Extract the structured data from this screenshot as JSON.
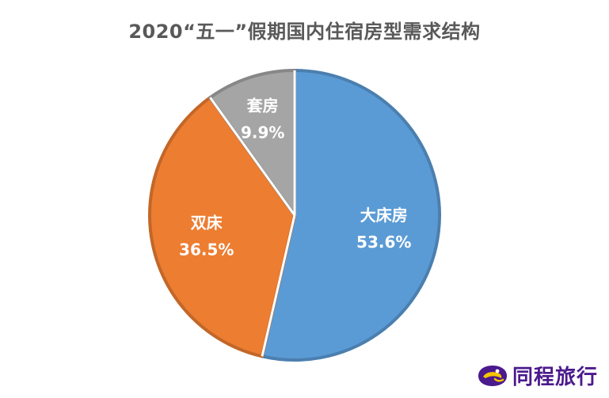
{
  "chart_data": {
    "type": "pie",
    "title": "2020“五一”假期国内住宿房型需求结构",
    "slices": [
      {
        "label": "大床房",
        "value": 53.6,
        "value_label": "53.6%",
        "color": "#5b9bd5"
      },
      {
        "label": "双床",
        "value": 36.5,
        "value_label": "36.5%",
        "color": "#ed7d31"
      },
      {
        "label": "套房",
        "value": 9.9,
        "value_label": "9.9%",
        "color": "#a5a5a5"
      }
    ],
    "start": "12 o'clock",
    "direction": "clockwise",
    "legend": "none"
  },
  "brand": {
    "name": "同程旅行",
    "logo_icon": "tongcheng-logo-icon",
    "color": "#4b1a8c",
    "accent": "#f5c400"
  }
}
